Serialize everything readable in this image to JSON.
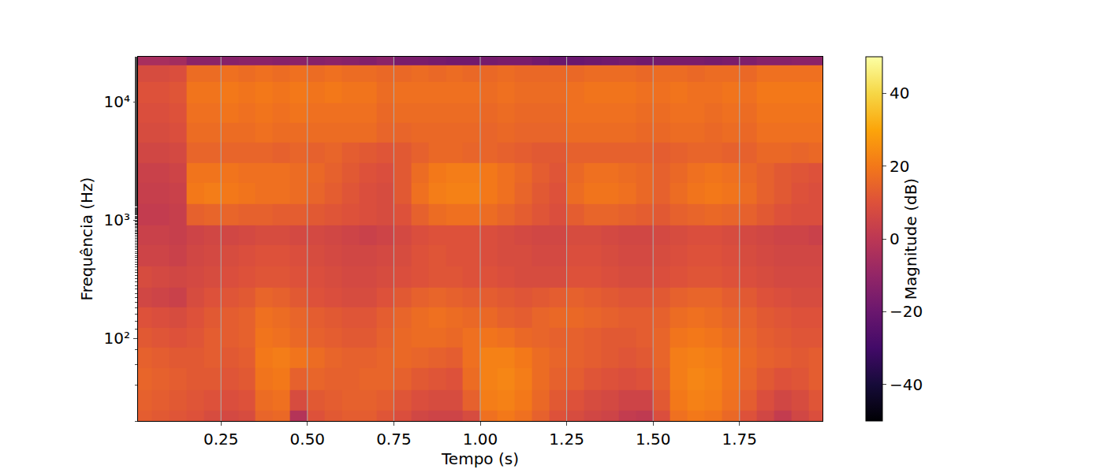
{
  "chart_data": {
    "type": "heatmap",
    "x_label": "Tempo (s)",
    "y_label": "Frequência (Hz)",
    "log": "y",
    "grid": true,
    "color": "inferno",
    "xlim": [
      0.01,
      1.99
    ],
    "ylim": [
      20,
      24000
    ],
    "xticks": [
      0.25,
      {
        "value": 0.5,
        "label": "0.50"
      },
      0.75,
      {
        "value": 1,
        "label": "1.00"
      },
      1.25,
      {
        "value": 1.5,
        "label": "1.50"
      },
      1.75
    ],
    "yticks": [
      {
        "value": 100,
        "label": "10²"
      },
      {
        "value": 1000,
        "label": "10³"
      },
      {
        "value": 10000,
        "label": "10⁴"
      }
    ],
    "x": [
      0.025,
      0.075,
      0.125,
      0.175,
      0.225,
      0.275,
      0.325,
      0.375,
      0.425,
      0.475,
      0.525,
      0.575,
      0.625,
      0.675,
      0.725,
      0.775,
      0.825,
      0.875,
      0.925,
      0.975,
      1.025,
      1.075,
      1.125,
      1.175,
      1.225,
      1.275,
      1.325,
      1.375,
      1.425,
      1.475,
      1.525,
      1.575,
      1.625,
      1.675,
      1.725,
      1.775,
      1.825,
      1.875,
      1.925,
      1.975
    ],
    "y": [
      20,
      30,
      45,
      70,
      100,
      150,
      220,
      330,
      500,
      750,
      1100,
      1700,
      2500,
      3700,
      5500,
      8000,
      12000,
      18000,
      23000
    ],
    "z": [
      [
        13,
        12,
        11,
        10,
        8,
        7,
        8,
        15,
        16,
        -2,
        10,
        12,
        13,
        13,
        11,
        9,
        6,
        5,
        5,
        8,
        18,
        20,
        18,
        14,
        10,
        8,
        6,
        5,
        2,
        1,
        9,
        18,
        20,
        19,
        16,
        10,
        6,
        2,
        6,
        9
      ],
      [
        14,
        13,
        12,
        11,
        10,
        9,
        10,
        17,
        18,
        8,
        12,
        13,
        14,
        14,
        13,
        11,
        9,
        8,
        8,
        14,
        21,
        22,
        20,
        16,
        12,
        10,
        8,
        7,
        5,
        5,
        12,
        20,
        22,
        21,
        18,
        13,
        9,
        6,
        8,
        11
      ],
      [
        15,
        14,
        13,
        12,
        12,
        11,
        12,
        19,
        20,
        14,
        15,
        14,
        14,
        15,
        15,
        14,
        12,
        11,
        10,
        17,
        22,
        23,
        21,
        17,
        14,
        13,
        11,
        10,
        9,
        10,
        14,
        21,
        23,
        22,
        19,
        15,
        12,
        10,
        11,
        13
      ],
      [
        14,
        13,
        12,
        12,
        13,
        12,
        13,
        20,
        21,
        19,
        17,
        15,
        14,
        14,
        15,
        16,
        15,
        14,
        13,
        18,
        22,
        22,
        20,
        17,
        15,
        14,
        13,
        12,
        11,
        12,
        15,
        21,
        22,
        21,
        19,
        16,
        14,
        13,
        12,
        13
      ],
      [
        12,
        11,
        10,
        11,
        13,
        13,
        14,
        19,
        18,
        16,
        14,
        13,
        12,
        12,
        14,
        16,
        17,
        17,
        16,
        18,
        19,
        18,
        16,
        15,
        14,
        14,
        13,
        12,
        12,
        13,
        15,
        19,
        20,
        19,
        17,
        15,
        13,
        12,
        11,
        11
      ],
      [
        10,
        9,
        8,
        10,
        12,
        13,
        14,
        18,
        17,
        15,
        13,
        12,
        11,
        11,
        13,
        15,
        17,
        18,
        17,
        16,
        16,
        14,
        13,
        15,
        16,
        16,
        15,
        14,
        13,
        13,
        14,
        17,
        18,
        17,
        15,
        14,
        12,
        11,
        10,
        10
      ],
      [
        6,
        5,
        4,
        8,
        10,
        11,
        12,
        15,
        14,
        12,
        10,
        9,
        8,
        8,
        10,
        12,
        14,
        15,
        14,
        13,
        13,
        12,
        11,
        12,
        13,
        14,
        13,
        12,
        11,
        11,
        12,
        14,
        15,
        15,
        13,
        12,
        10,
        9,
        8,
        8
      ],
      [
        8,
        7,
        6,
        7,
        8,
        9,
        10,
        11,
        11,
        10,
        9,
        8,
        7,
        7,
        8,
        9,
        10,
        11,
        11,
        10,
        10,
        9,
        8,
        8,
        8,
        10,
        10,
        9,
        8,
        8,
        9,
        10,
        11,
        11,
        10,
        9,
        8,
        7,
        7,
        7
      ],
      [
        5,
        5,
        4,
        6,
        7,
        8,
        9,
        10,
        10,
        9,
        8,
        7,
        6,
        6,
        7,
        8,
        10,
        11,
        10,
        10,
        9,
        8,
        8,
        7,
        7,
        9,
        9,
        8,
        7,
        7,
        8,
        9,
        10,
        10,
        9,
        8,
        7,
        6,
        6,
        6
      ],
      [
        4,
        4,
        3,
        5,
        6,
        6,
        7,
        8,
        8,
        7,
        7,
        6,
        5,
        4,
        5,
        7,
        9,
        10,
        10,
        10,
        9,
        8,
        7,
        6,
        6,
        8,
        8,
        7,
        6,
        6,
        7,
        8,
        9,
        9,
        8,
        7,
        6,
        5,
        5,
        4
      ],
      [
        2,
        2,
        3,
        14,
        15,
        15,
        14,
        14,
        13,
        13,
        12,
        11,
        10,
        9,
        8,
        10,
        14,
        17,
        18,
        18,
        17,
        15,
        13,
        11,
        9,
        13,
        15,
        15,
        14,
        13,
        12,
        14,
        15,
        16,
        15,
        14,
        12,
        10,
        9,
        9
      ],
      [
        3,
        3,
        4,
        20,
        21,
        20,
        19,
        18,
        18,
        17,
        15,
        13,
        11,
        9,
        8,
        12,
        18,
        21,
        22,
        22,
        20,
        18,
        15,
        12,
        10,
        17,
        19,
        19,
        18,
        16,
        14,
        17,
        19,
        20,
        19,
        17,
        14,
        12,
        10,
        9
      ],
      [
        4,
        4,
        5,
        19,
        19,
        19,
        18,
        18,
        18,
        17,
        16,
        14,
        12,
        10,
        9,
        12,
        17,
        20,
        21,
        21,
        20,
        18,
        16,
        13,
        11,
        16,
        18,
        18,
        17,
        16,
        14,
        16,
        18,
        19,
        18,
        16,
        14,
        12,
        11,
        10
      ],
      [
        6,
        6,
        7,
        15,
        15,
        15,
        15,
        15,
        14,
        15,
        14,
        15,
        13,
        12,
        11,
        12,
        14,
        16,
        16,
        15,
        15,
        14,
        13,
        12,
        12,
        14,
        14,
        14,
        14,
        14,
        13,
        14,
        15,
        15,
        14,
        14,
        16,
        16,
        15,
        16
      ],
      [
        8,
        8,
        9,
        17,
        17,
        17,
        17,
        18,
        17,
        17,
        17,
        17,
        17,
        17,
        15,
        15,
        16,
        16,
        16,
        16,
        15,
        16,
        15,
        15,
        15,
        17,
        17,
        17,
        17,
        16,
        16,
        17,
        17,
        16,
        17,
        16,
        18,
        18,
        18,
        18
      ],
      [
        9,
        9,
        10,
        18,
        18,
        19,
        18,
        19,
        18,
        19,
        18,
        18,
        18,
        18,
        16,
        17,
        17,
        17,
        17,
        17,
        16,
        17,
        16,
        16,
        16,
        18,
        18,
        18,
        18,
        17,
        17,
        18,
        18,
        17,
        18,
        17,
        19,
        19,
        19,
        19
      ],
      [
        10,
        10,
        11,
        19,
        19,
        20,
        19,
        20,
        19,
        20,
        19,
        20,
        19,
        19,
        17,
        18,
        18,
        18,
        18,
        18,
        17,
        18,
        17,
        17,
        17,
        18,
        19,
        19,
        19,
        18,
        18,
        19,
        18,
        18,
        19,
        18,
        20,
        20,
        20,
        20
      ],
      [
        8,
        8,
        9,
        17,
        17,
        18,
        17,
        18,
        17,
        18,
        17,
        18,
        17,
        17,
        16,
        16,
        17,
        16,
        17,
        16,
        16,
        17,
        16,
        16,
        16,
        16,
        17,
        17,
        17,
        16,
        17,
        17,
        16,
        17,
        17,
        16,
        18,
        18,
        18,
        18
      ],
      [
        -5,
        -5,
        -6,
        -12,
        -12,
        -13,
        -12,
        -12,
        -13,
        -12,
        -13,
        -12,
        -13,
        -14,
        -12,
        -16,
        -16,
        -17,
        -18,
        -18,
        -17,
        -16,
        -16,
        -18,
        -20,
        -20,
        -19,
        -18,
        -17,
        -18,
        -17,
        -16,
        -16,
        -17,
        -16,
        -15,
        -13,
        -13,
        -12,
        -12
      ]
    ],
    "colorbar": {
      "title": "Magnitude (dB)",
      "range": [
        -50,
        50
      ],
      "ticks": [
        {
          "value": -40,
          "label": "−40"
        },
        {
          "value": -20,
          "label": "−20"
        },
        0,
        20,
        40
      ]
    }
  }
}
